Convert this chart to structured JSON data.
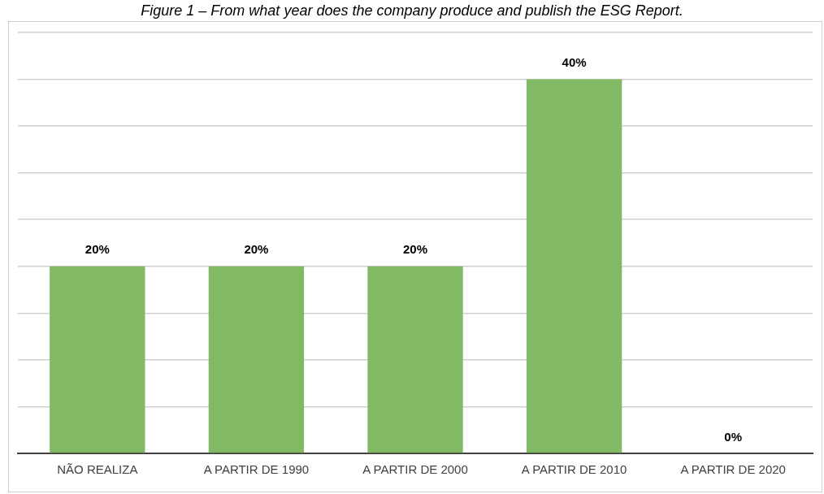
{
  "chart_data": {
    "type": "bar",
    "title": "Figure 1 – From what year does the company produce and publish the ESG Report.",
    "categories": [
      "NÃO REALIZA",
      "A PARTIR DE 1990",
      "A PARTIR DE 2000",
      "A PARTIR DE 2010",
      "A PARTIR DE 2020"
    ],
    "values": [
      20,
      20,
      20,
      40,
      0
    ],
    "value_labels": [
      "20%",
      "20%",
      "20%",
      "40%",
      "0%"
    ],
    "color": "#82b965",
    "ylim": [
      0,
      45
    ],
    "yticks": [
      {
        "value": 0,
        "label": null
      },
      {
        "value": 5,
        "label": null
      },
      {
        "value": 10,
        "label": null
      },
      {
        "value": 15,
        "label": null
      },
      {
        "value": 20,
        "label": null
      },
      {
        "value": 25,
        "label": null
      },
      {
        "value": 30,
        "label": null
      },
      {
        "value": 35,
        "label": null
      },
      {
        "value": 40,
        "label": null
      },
      {
        "value": 45,
        "label": null
      }
    ],
    "tick_labels": "x",
    "grid": "y",
    "legend": false
  }
}
